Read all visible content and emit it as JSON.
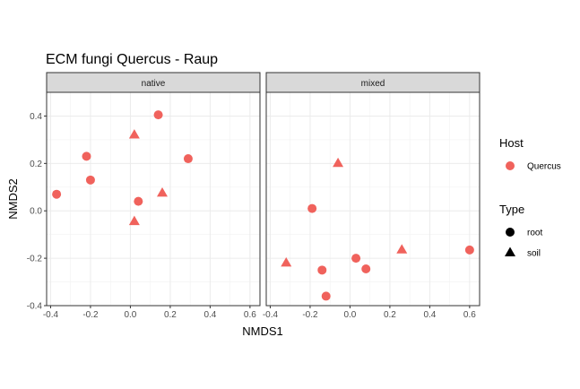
{
  "chart_data": {
    "type": "scatter",
    "title": "ECM fungi Quercus - Raup",
    "xlabel": "NMDS1",
    "ylabel": "NMDS2",
    "xlim": [
      -0.42,
      0.65
    ],
    "ylim": [
      -0.4,
      0.5
    ],
    "x_ticks": [
      "-0.4",
      "-0.2",
      "0.0",
      "0.2",
      "0.4",
      "0.6"
    ],
    "y_ticks": [
      "-0.4",
      "-0.2",
      "0.0",
      "0.2",
      "0.4"
    ],
    "grid": true,
    "point_color": "#F0625C",
    "panels": [
      {
        "name": "native",
        "points": [
          {
            "x": 0.14,
            "y": 0.405,
            "type": "root"
          },
          {
            "x": -0.22,
            "y": 0.23,
            "type": "root"
          },
          {
            "x": 0.29,
            "y": 0.22,
            "type": "root"
          },
          {
            "x": -0.2,
            "y": 0.13,
            "type": "root"
          },
          {
            "x": -0.37,
            "y": 0.07,
            "type": "root"
          },
          {
            "x": 0.04,
            "y": 0.04,
            "type": "root"
          },
          {
            "x": 0.02,
            "y": 0.32,
            "type": "soil"
          },
          {
            "x": 0.16,
            "y": 0.075,
            "type": "soil"
          },
          {
            "x": 0.02,
            "y": -0.045,
            "type": "soil"
          }
        ]
      },
      {
        "name": "mixed",
        "points": [
          {
            "x": -0.19,
            "y": 0.01,
            "type": "root"
          },
          {
            "x": 0.6,
            "y": -0.165,
            "type": "root"
          },
          {
            "x": 0.03,
            "y": -0.2,
            "type": "root"
          },
          {
            "x": 0.08,
            "y": -0.245,
            "type": "root"
          },
          {
            "x": -0.14,
            "y": -0.25,
            "type": "root"
          },
          {
            "x": -0.12,
            "y": -0.36,
            "type": "root"
          },
          {
            "x": -0.06,
            "y": 0.2,
            "type": "soil"
          },
          {
            "x": 0.26,
            "y": -0.165,
            "type": "soil"
          },
          {
            "x": -0.32,
            "y": -0.22,
            "type": "soil"
          }
        ]
      }
    ],
    "legend": {
      "placement": "right",
      "groups": [
        {
          "title": "Host",
          "items": [
            {
              "label": "Quercus",
              "shape": "circle",
              "color": "#F0625C"
            }
          ]
        },
        {
          "title": "Type",
          "items": [
            {
              "label": "root",
              "shape": "circle",
              "color": "#000000"
            },
            {
              "label": "soil",
              "shape": "triangle",
              "color": "#000000"
            }
          ]
        }
      ]
    }
  }
}
